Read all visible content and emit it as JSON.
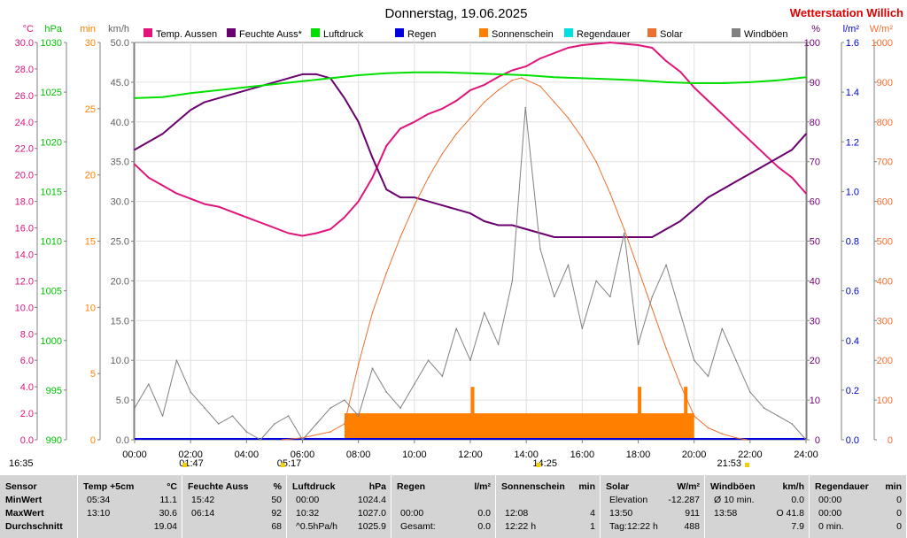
{
  "header": {
    "title": "Donnerstag, 19.06.2025",
    "station": "Wetterstation Willich",
    "station_color": "#e00000"
  },
  "chart_data": {
    "type": "line",
    "x_range_hours": [
      0,
      24
    ],
    "x_tick_labels": [
      "00:00",
      "02:00",
      "04:00",
      "06:00",
      "08:00",
      "10:00",
      "12:00",
      "14:00",
      "16:00",
      "18:00",
      "20:00",
      "22:00",
      "24:00"
    ],
    "grid": true,
    "legend_position": "top",
    "legend": [
      {
        "label": "Temp. Aussen",
        "color": "#e0147a"
      },
      {
        "label": "Feuchte Auss*",
        "color": "#6a0070"
      },
      {
        "label": "Luftdruck",
        "color": "#00e000"
      },
      {
        "label": "Regen",
        "color": "#0000dd"
      },
      {
        "label": "Sonnenschein",
        "color": "#ff8000"
      },
      {
        "label": "Regendauer",
        "color": "#00e0e0"
      },
      {
        "label": "Solar",
        "color": "#ee7030"
      },
      {
        "label": "Windböen",
        "color": "#808080"
      }
    ],
    "axes": {
      "temp": {
        "unit": "°C",
        "color": "#e0147a",
        "range": [
          0,
          30
        ],
        "ticks": [
          "0.0",
          "2.0",
          "4.0",
          "6.0",
          "8.0",
          "10.0",
          "12.0",
          "14.0",
          "16.0",
          "18.0",
          "20.0",
          "22.0",
          "24.0",
          "26.0",
          "28.0",
          "30.0"
        ]
      },
      "pressure": {
        "unit": "hPa",
        "color": "#00c000",
        "range": [
          990,
          1030
        ],
        "ticks": [
          "990",
          "995",
          "1000",
          "1005",
          "1010",
          "1015",
          "1020",
          "1025",
          "1030"
        ]
      },
      "sunshine_min": {
        "unit": "min",
        "color": "#ff8000",
        "range": [
          0,
          30
        ],
        "ticks": [
          "0",
          "5",
          "10",
          "15",
          "20",
          "25",
          "30"
        ]
      },
      "wind": {
        "unit": "km/h",
        "color": "#606060",
        "range": [
          0,
          50
        ],
        "ticks": [
          "0.0",
          "5.0",
          "10.0",
          "15.0",
          "20.0",
          "25.0",
          "30.0",
          "35.0",
          "40.0",
          "45.0",
          "50.0"
        ]
      },
      "humidity": {
        "unit": "%",
        "color": "#6a0070",
        "range": [
          0,
          100
        ],
        "ticks": [
          "0",
          "10",
          "20",
          "30",
          "40",
          "50",
          "60",
          "70",
          "80",
          "90",
          "100"
        ]
      },
      "rain": {
        "unit": "l/m²",
        "color": "#0000cc",
        "range": [
          0,
          1.6
        ],
        "ticks": [
          "0.0",
          "0.2",
          "0.4",
          "0.6",
          "0.8",
          "1.0",
          "1.2",
          "1.4",
          "1.6"
        ]
      },
      "solar": {
        "unit": "W/m²",
        "color": "#ee7030",
        "range": [
          0,
          1000
        ],
        "ticks": [
          "0",
          "100",
          "200",
          "300",
          "400",
          "500",
          "600",
          "700",
          "800",
          "900",
          "1000"
        ]
      }
    },
    "series": [
      {
        "name": "Temp. Aussen",
        "axis": "temp",
        "color": "#e0147a",
        "x": [
          0,
          0.5,
          1,
          1.5,
          2,
          2.5,
          3,
          3.5,
          4,
          4.5,
          5,
          5.5,
          6,
          6.5,
          7,
          7.5,
          8,
          8.5,
          9,
          9.5,
          10,
          10.5,
          11,
          11.5,
          12,
          12.5,
          13,
          13.5,
          14,
          14.5,
          15,
          15.5,
          16,
          16.5,
          17,
          17.5,
          18,
          18.5,
          19,
          19.5,
          20,
          20.5,
          21,
          21.5,
          22,
          22.5,
          23,
          23.5,
          24
        ],
        "values": [
          20.8,
          19.8,
          19.2,
          18.6,
          18.2,
          17.8,
          17.6,
          17.2,
          16.8,
          16.4,
          16.0,
          15.6,
          15.4,
          15.6,
          15.9,
          16.8,
          18.0,
          19.8,
          22.2,
          23.5,
          24.0,
          24.6,
          25.0,
          25.6,
          26.4,
          26.8,
          27.4,
          27.9,
          28.2,
          28.8,
          29.2,
          29.6,
          29.8,
          29.9,
          30.0,
          29.9,
          29.8,
          29.6,
          28.6,
          27.8,
          26.6,
          25.6,
          24.6,
          23.6,
          22.6,
          21.6,
          20.6,
          19.8,
          18.6
        ]
      },
      {
        "name": "Feuchte Auss*",
        "axis": "humidity",
        "color": "#6a0070",
        "x": [
          0,
          0.5,
          1,
          1.5,
          2,
          2.5,
          3,
          3.5,
          4,
          4.5,
          5,
          5.5,
          6,
          6.5,
          7,
          7.5,
          8,
          8.5,
          9,
          9.5,
          10,
          10.5,
          11,
          11.5,
          12,
          12.5,
          13,
          13.5,
          14,
          14.5,
          15,
          15.5,
          16,
          16.5,
          17,
          17.5,
          18,
          18.5,
          19,
          19.5,
          20,
          20.5,
          21,
          21.5,
          22,
          22.5,
          23,
          23.5,
          24
        ],
        "values": [
          73,
          75,
          77,
          80,
          83,
          85,
          86,
          87,
          88,
          89,
          90,
          91,
          92,
          92,
          91,
          86,
          80,
          71,
          63,
          61,
          61,
          60,
          59,
          58,
          57,
          55,
          54,
          54,
          53,
          52,
          51,
          51,
          51,
          51,
          51,
          51,
          51,
          51,
          53,
          55,
          58,
          61,
          63,
          65,
          67,
          69,
          71,
          73,
          77
        ]
      },
      {
        "name": "Luftdruck",
        "axis": "pressure",
        "color": "#00e000",
        "x": [
          0,
          1,
          2,
          3,
          4,
          5,
          6,
          7,
          8,
          9,
          10,
          11,
          12,
          13,
          14,
          15,
          16,
          17,
          18,
          19,
          20,
          21,
          22,
          23,
          24
        ],
        "values": [
          1024.4,
          1024.5,
          1024.9,
          1025.2,
          1025.5,
          1025.8,
          1026.1,
          1026.4,
          1026.7,
          1026.9,
          1027.0,
          1027.0,
          1026.9,
          1026.8,
          1026.7,
          1026.5,
          1026.4,
          1026.3,
          1026.2,
          1026.0,
          1025.9,
          1025.9,
          1026.0,
          1026.2,
          1026.5
        ]
      },
      {
        "name": "Solar",
        "axis": "solar",
        "color": "#ee7030",
        "x": [
          5.28,
          6,
          7,
          7.5,
          8,
          8.5,
          9,
          9.5,
          10,
          10.5,
          11,
          11.5,
          12,
          12.5,
          13,
          13.5,
          13.83,
          14.5,
          15,
          15.5,
          16,
          16.5,
          17,
          17.5,
          18,
          18.5,
          19,
          19.5,
          20,
          20.5,
          21,
          21.5,
          21.88
        ],
        "values": [
          0,
          5,
          20,
          40,
          190,
          320,
          420,
          510,
          590,
          660,
          720,
          770,
          810,
          850,
          880,
          905,
          911,
          890,
          850,
          810,
          760,
          700,
          620,
          530,
          430,
          330,
          230,
          140,
          60,
          30,
          15,
          5,
          0
        ]
      },
      {
        "name": "Windböen",
        "axis": "wind",
        "color": "#808080",
        "x": [
          0,
          0.5,
          1,
          1.5,
          2,
          2.5,
          3,
          3.5,
          4,
          4.5,
          5,
          5.5,
          6,
          6.5,
          7,
          7.5,
          8,
          8.5,
          9,
          9.5,
          10,
          10.5,
          11,
          11.5,
          12,
          12.5,
          13,
          13.5,
          13.97,
          14.5,
          15,
          15.5,
          16,
          16.5,
          17,
          17.5,
          18,
          18.5,
          19,
          19.5,
          20,
          20.5,
          21,
          21.5,
          22,
          22.5,
          23,
          23.5,
          24
        ],
        "values": [
          4,
          7,
          3,
          10,
          6,
          4,
          2,
          3,
          1,
          0,
          2,
          3,
          0,
          2,
          4,
          5,
          3,
          9,
          6,
          4,
          7,
          10,
          8,
          14,
          10,
          16,
          12,
          20,
          41.8,
          24,
          18,
          22,
          14,
          20,
          18,
          26,
          12,
          18,
          22,
          16,
          10,
          8,
          14,
          10,
          6,
          4,
          3,
          2,
          0
        ]
      }
    ],
    "sunshine_bar": {
      "start_hour": 7.5,
      "end_hour": 20.0,
      "level_min": 2,
      "spikes": [
        {
          "hour": 12.08,
          "min": 4
        },
        {
          "hour": 18.05,
          "min": 4
        },
        {
          "hour": 19.7,
          "min": 4
        }
      ]
    },
    "markers": [
      {
        "hour": 1.78,
        "label": "01:47"
      },
      {
        "hour": 5.28,
        "label": "05:17"
      },
      {
        "hour": 14.42,
        "label": "14:25"
      },
      {
        "hour": 21.88,
        "label": "21:53"
      }
    ],
    "corner_times": {
      "left": "16:35"
    }
  },
  "stats": {
    "sensor": {
      "header": "Sensor",
      "rows": [
        "MinWert",
        "MaxWert",
        "Durchschnitt"
      ]
    },
    "temp": {
      "header": "Temp +5cm",
      "unit": "°C",
      "rows": [
        [
          "05:34",
          "11.1"
        ],
        [
          "13:10",
          "30.6"
        ],
        [
          "",
          "19.04"
        ]
      ]
    },
    "humidity": {
      "header": "Feuchte Auss",
      "unit": "%",
      "rows": [
        [
          "15:42",
          "50"
        ],
        [
          "06:14",
          "92"
        ],
        [
          "",
          "68"
        ]
      ]
    },
    "pressure": {
      "header": "Luftdruck",
      "unit": "hPa",
      "rows": [
        [
          "00:00",
          "1024.4"
        ],
        [
          "10:32",
          "1027.0"
        ],
        [
          "^0.5hPa/h",
          "1025.9"
        ]
      ]
    },
    "rain": {
      "header": "Regen",
      "unit": "l/m²",
      "rows": [
        [
          "",
          ""
        ],
        [
          "00:00",
          "0.0"
        ],
        [
          "Gesamt:",
          "0.0"
        ]
      ]
    },
    "sunshine": {
      "header": "Sonnenschein",
      "unit": "min",
      "rows": [
        [
          "",
          ""
        ],
        [
          "12:08",
          "4"
        ],
        [
          "12:22 h",
          "1"
        ]
      ]
    },
    "solar": {
      "header": "Solar",
      "unit": "W/m²",
      "rows": [
        [
          "Elevation",
          "-12.287"
        ],
        [
          "13:50",
          "911"
        ],
        [
          "Tag:12:22 h",
          "488"
        ]
      ]
    },
    "wind": {
      "header": "Windböen",
      "unit": "km/h",
      "rows": [
        [
          "Ø 10 min.",
          "0.0"
        ],
        [
          "13:58",
          "O 41.8"
        ],
        [
          "",
          "7.9"
        ]
      ]
    },
    "rainduration": {
      "header": "Regendauer",
      "unit": "min",
      "rows": [
        [
          "00:00",
          "0"
        ],
        [
          "00:00",
          "0"
        ],
        [
          "0 min.",
          "0"
        ]
      ]
    }
  }
}
